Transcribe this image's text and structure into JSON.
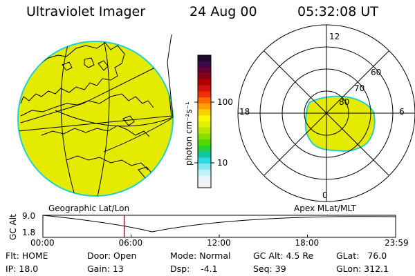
{
  "header": {
    "instrument": "Ultraviolet Imager",
    "date": "24 Aug 00",
    "time": "05:32:08 UT"
  },
  "colorbar": {
    "unit_label": "photon cm⁻²s⁻¹",
    "tick_100": "100",
    "tick_10": "10",
    "colors": [
      "#1a0a2e",
      "#3c0a4a",
      "#6a0030",
      "#8a0010",
      "#b00000",
      "#d41010",
      "#ee3000",
      "#ff6a00",
      "#ffa000",
      "#ffd000",
      "#f8f800",
      "#e0f000",
      "#b8e800",
      "#88e000",
      "#50d800",
      "#20d040",
      "#10c8a0",
      "#30d8e0",
      "#80e8f0",
      "#c0f0f8",
      "#e8f4f8",
      "#f2f2f2"
    ]
  },
  "geo_panel": {
    "label": "Geographic Lat/Lon",
    "fill_color": "#e4ea00",
    "edge_color": "#20d0d0"
  },
  "polar_panel": {
    "label": "Apex MLat/MLT",
    "mlt_12": "12",
    "mlt_18": "18",
    "mlt_6": "6",
    "mlt_0": "0",
    "lat_60": "60",
    "lat_70": "70",
    "lat_80": "80"
  },
  "altitude_plot": {
    "ylabel": "GC Alt",
    "y_max_label": "9.0",
    "y_min_label": "1.8",
    "x_ticks": [
      "00:00",
      "06:00",
      "12:00",
      "18:00",
      "23:59"
    ],
    "current_time_hours": 5.535,
    "marker_color": "#cc0000"
  },
  "status": {
    "flt": "Flt: HOME",
    "ip": "IP: 18.0",
    "door": "Door: Open",
    "gain": "Gain: 13",
    "mode": "Mode: Normal",
    "dsp": "Dsp:    -4.1",
    "gc_alt": "GC Alt: 4.5 Re",
    "seq": "Seq: 39",
    "glat": "GLat:   76.0",
    "glon": "GLon: 312.1"
  }
}
